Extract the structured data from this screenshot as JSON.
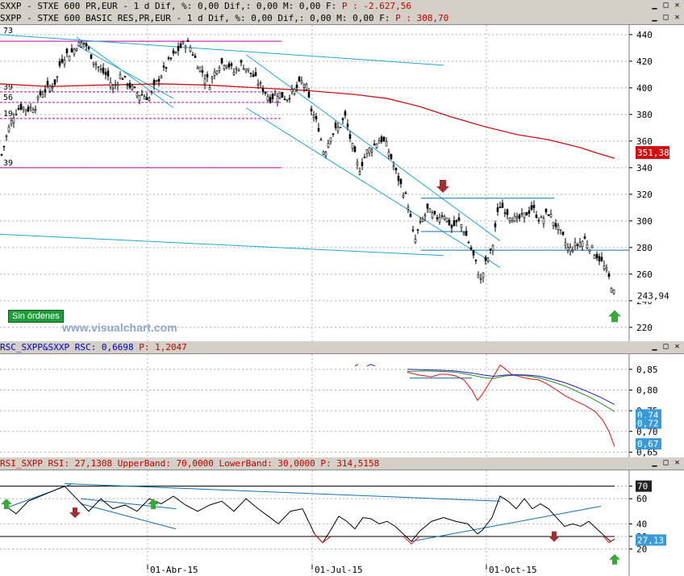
{
  "window": {
    "title_1": "SXXP - STXE 600 PR,EUR - 1 d Dif, %: 0,00 Dif,: 0,00 M: 0,00 F:",
    "title_1_p": "P : -2.627,56",
    "title_2": "SXPP - STXE 600 BASIC RES,PR,EUR - 1 d Dif, %: 0,00 Dif,: 0,00 M: 0,00 F:",
    "title_2_p": "P : 308,70",
    "rsc_title": "RSC_SXPP&SXXP RSC: 0,6698",
    "rsc_p": "P: 1,2047",
    "rsi_title": "RSI_SXPP RSI: 27,1308 UpperBand: 70,0000 LowerBand: 30,0000",
    "rsi_p": "P: 314,5158",
    "badge": "Sin órdenes",
    "watermark": "www.visualchart.com",
    "colors": {
      "candle": "#000000",
      "ma": "#d01010",
      "channel": "#20a8d0",
      "hline": "#c000a0",
      "up_arrow": "#3aa83a",
      "down_arrow": "#a03030"
    }
  },
  "chart_data": [
    {
      "type": "candlestick",
      "name": "SXPP price",
      "ylim": [
        212,
        446
      ],
      "y_ticks": [
        220,
        240,
        260,
        280,
        300,
        320,
        340,
        360,
        380,
        400,
        420,
        440
      ],
      "x_labels": [
        "01-Abr-15",
        "01-Jul-15",
        "01-Oct-15"
      ],
      "last_price": "243,94",
      "ma_value": "351,38",
      "level_labels": [
        "73",
        "39",
        "56",
        "19",
        "39"
      ],
      "close_path": [
        [
          0,
          345
        ],
        [
          10,
          368
        ],
        [
          18,
          381
        ],
        [
          25,
          386
        ],
        [
          35,
          384
        ],
        [
          45,
          387
        ],
        [
          50,
          395
        ],
        [
          60,
          400
        ],
        [
          70,
          405
        ],
        [
          75,
          420
        ],
        [
          82,
          425
        ],
        [
          90,
          427
        ],
        [
          95,
          432
        ],
        [
          105,
          434
        ],
        [
          115,
          422
        ],
        [
          125,
          413
        ],
        [
          135,
          408
        ],
        [
          140,
          399
        ],
        [
          150,
          410
        ],
        [
          160,
          402
        ],
        [
          170,
          396
        ],
        [
          180,
          394
        ],
        [
          185,
          392
        ],
        [
          195,
          405
        ],
        [
          200,
          410
        ],
        [
          210,
          420
        ],
        [
          220,
          428
        ],
        [
          230,
          434
        ],
        [
          235,
          432
        ],
        [
          245,
          418
        ],
        [
          255,
          408
        ],
        [
          260,
          403
        ],
        [
          270,
          417
        ],
        [
          280,
          420
        ],
        [
          290,
          412
        ],
        [
          300,
          418
        ],
        [
          310,
          412
        ],
        [
          320,
          404
        ],
        [
          330,
          396
        ],
        [
          335,
          392
        ],
        [
          345,
          396
        ],
        [
          355,
          392
        ],
        [
          365,
          398
        ],
        [
          375,
          405
        ],
        [
          380,
          400
        ],
        [
          385,
          385
        ],
        [
          395,
          370
        ],
        [
          402,
          350
        ],
        [
          410,
          365
        ],
        [
          420,
          370
        ],
        [
          428,
          378
        ],
        [
          435,
          360
        ],
        [
          445,
          338
        ],
        [
          455,
          352
        ],
        [
          465,
          358
        ],
        [
          472,
          362
        ],
        [
          480,
          356
        ],
        [
          490,
          338
        ],
        [
          500,
          322
        ],
        [
          505,
          316
        ],
        [
          510,
          298
        ],
        [
          514,
          284
        ],
        [
          520,
          296
        ],
        [
          530,
          308
        ],
        [
          540,
          302
        ],
        [
          550,
          306
        ],
        [
          560,
          295
        ],
        [
          570,
          300
        ],
        [
          580,
          286
        ],
        [
          590,
          268
        ],
        [
          596,
          255
        ],
        [
          603,
          270
        ],
        [
          610,
          278
        ],
        [
          615,
          300
        ],
        [
          620,
          312
        ],
        [
          630,
          306
        ],
        [
          640,
          300
        ],
        [
          650,
          304
        ],
        [
          660,
          310
        ],
        [
          670,
          300
        ],
        [
          680,
          306
        ],
        [
          690,
          296
        ],
        [
          700,
          285
        ],
        [
          705,
          278
        ],
        [
          715,
          282
        ],
        [
          725,
          286
        ],
        [
          735,
          278
        ],
        [
          745,
          270
        ],
        [
          752,
          262
        ],
        [
          758,
          252
        ],
        [
          762,
          244
        ]
      ],
      "ma_path": [
        [
          0,
          403
        ],
        [
          60,
          401
        ],
        [
          120,
          402
        ],
        [
          200,
          403
        ],
        [
          260,
          402
        ],
        [
          320,
          400
        ],
        [
          380,
          398
        ],
        [
          440,
          395
        ],
        [
          480,
          392
        ],
        [
          520,
          386
        ],
        [
          560,
          378
        ],
        [
          600,
          371
        ],
        [
          640,
          365
        ],
        [
          680,
          361
        ],
        [
          700,
          358
        ],
        [
          720,
          355
        ],
        [
          740,
          351
        ],
        [
          762,
          347
        ]
      ]
    },
    {
      "type": "line",
      "name": "RSC",
      "y_ticks": [
        0.85,
        0.8,
        0.75,
        0.7,
        0.65
      ],
      "value_labels": [
        "0,74",
        "0,72",
        "0,67"
      ],
      "series": [
        {
          "color": "#e01010",
          "points": [
            [
              505,
              0.843
            ],
            [
              520,
              0.836
            ],
            [
              535,
              0.832
            ],
            [
              545,
              0.838
            ],
            [
              555,
              0.838
            ],
            [
              565,
              0.834
            ],
            [
              575,
              0.825
            ],
            [
              585,
              0.8
            ],
            [
              592,
              0.775
            ],
            [
              598,
              0.79
            ],
            [
              606,
              0.815
            ],
            [
              614,
              0.84
            ],
            [
              620,
              0.86
            ],
            [
              626,
              0.852
            ],
            [
              634,
              0.838
            ],
            [
              645,
              0.832
            ],
            [
              656,
              0.827
            ],
            [
              667,
              0.825
            ],
            [
              678,
              0.815
            ],
            [
              690,
              0.8
            ],
            [
              700,
              0.787
            ],
            [
              712,
              0.775
            ],
            [
              725,
              0.763
            ],
            [
              738,
              0.748
            ],
            [
              748,
              0.725
            ],
            [
              755,
              0.7
            ],
            [
              762,
              0.663
            ]
          ]
        },
        {
          "color": "#2a8a2a",
          "points": [
            [
              505,
              0.845
            ],
            [
              525,
              0.846
            ],
            [
              545,
              0.845
            ],
            [
              565,
              0.843
            ],
            [
              585,
              0.836
            ],
            [
              600,
              0.83
            ],
            [
              612,
              0.828
            ],
            [
              626,
              0.834
            ],
            [
              640,
              0.836
            ],
            [
              655,
              0.834
            ],
            [
              670,
              0.829
            ],
            [
              685,
              0.82
            ],
            [
              700,
              0.81
            ],
            [
              715,
              0.797
            ],
            [
              730,
              0.784
            ],
            [
              745,
              0.768
            ],
            [
              762,
              0.748
            ]
          ]
        },
        {
          "color": "#2020c0",
          "points": [
            [
              505,
              0.85
            ],
            [
              525,
              0.849
            ],
            [
              545,
              0.848
            ],
            [
              565,
              0.846
            ],
            [
              585,
              0.841
            ],
            [
              600,
              0.836
            ],
            [
              612,
              0.833
            ],
            [
              626,
              0.836
            ],
            [
              640,
              0.837
            ],
            [
              655,
              0.836
            ],
            [
              670,
              0.833
            ],
            [
              685,
              0.826
            ],
            [
              700,
              0.818
            ],
            [
              715,
              0.807
            ],
            [
              730,
              0.795
            ],
            [
              745,
              0.782
            ],
            [
              762,
              0.765
            ]
          ]
        },
        {
          "color": "#2020c0",
          "points": [
            [
              440,
              0.858
            ],
            [
              444,
              0.862
            ]
          ]
        },
        {
          "color": "#2020c0",
          "points": [
            [
              455,
              0.858
            ],
            [
              460,
              0.862
            ],
            [
              465,
              0.858
            ]
          ]
        }
      ]
    },
    {
      "type": "line",
      "name": "RSI",
      "ylim": [
        12,
        80
      ],
      "y_ticks": [
        70,
        60,
        40,
        30,
        20
      ],
      "value_labels": [
        "70",
        "27,13"
      ],
      "upper_band": 70,
      "lower_band": 30,
      "series": [
        {
          "color": "#000000",
          "points": [
            [
              5,
              55
            ],
            [
              20,
              48
            ],
            [
              35,
              58
            ],
            [
              50,
              62
            ],
            [
              65,
              66
            ],
            [
              80,
              70
            ],
            [
              95,
              60
            ],
            [
              110,
              50
            ],
            [
              125,
              60
            ],
            [
              140,
              52
            ],
            [
              155,
              55
            ],
            [
              170,
              50
            ],
            [
              185,
              60
            ],
            [
              200,
              56
            ],
            [
              215,
              62
            ],
            [
              230,
              55
            ],
            [
              245,
              50
            ],
            [
              260,
              55
            ],
            [
              275,
              58
            ],
            [
              290,
              50
            ],
            [
              305,
              60
            ],
            [
              320,
              52
            ],
            [
              335,
              45
            ],
            [
              345,
              40
            ],
            [
              360,
              50
            ],
            [
              375,
              52
            ],
            [
              390,
              32
            ],
            [
              400,
              25
            ],
            [
              410,
              35
            ],
            [
              420,
              46
            ],
            [
              430,
              42
            ],
            [
              440,
              36
            ],
            [
              450,
              45
            ],
            [
              460,
              44
            ],
            [
              470,
              40
            ],
            [
              480,
              42
            ],
            [
              490,
              38
            ],
            [
              500,
              32
            ],
            [
              510,
              26
            ],
            [
              520,
              34
            ],
            [
              535,
              42
            ],
            [
              550,
              45
            ],
            [
              565,
              42
            ],
            [
              580,
              40
            ],
            [
              592,
              32
            ],
            [
              598,
              35
            ],
            [
              610,
              45
            ],
            [
              620,
              62
            ],
            [
              630,
              58
            ],
            [
              640,
              52
            ],
            [
              650,
              60
            ],
            [
              660,
              52
            ],
            [
              670,
              56
            ],
            [
              680,
              52
            ],
            [
              690,
              45
            ],
            [
              700,
              38
            ],
            [
              710,
              40
            ],
            [
              720,
              38
            ],
            [
              730,
              42
            ],
            [
              740,
              36
            ],
            [
              750,
              30
            ],
            [
              757,
              26
            ],
            [
              762,
              28
            ]
          ]
        },
        {
          "color": "#e01010",
          "points": [
            [
              390,
              32
            ],
            [
              400,
              25
            ],
            [
              410,
              30
            ]
          ]
        },
        {
          "color": "#e01010",
          "points": [
            [
              500,
              30
            ],
            [
              510,
              24
            ],
            [
              520,
              30
            ]
          ]
        },
        {
          "color": "#e01010",
          "points": [
            [
              748,
              30
            ],
            [
              755,
              25
            ],
            [
              762,
              28
            ]
          ]
        }
      ]
    }
  ]
}
